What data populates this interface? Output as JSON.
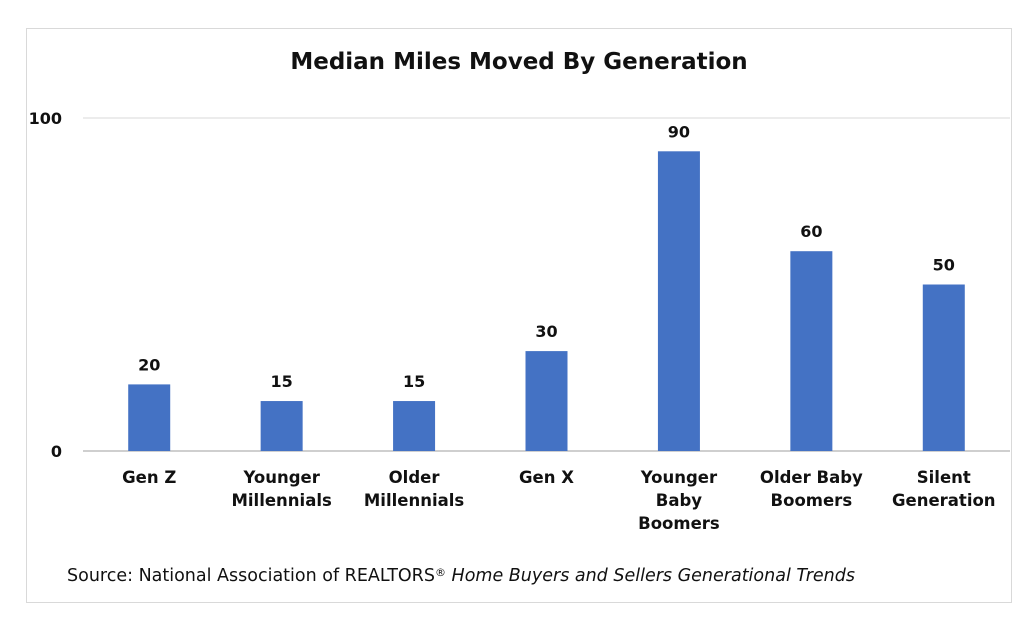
{
  "chart_data": {
    "type": "bar",
    "title": "Median Miles Moved By Generation",
    "categories": [
      [
        "Gen Z"
      ],
      [
        "Younger",
        "Millennials"
      ],
      [
        "Older",
        "Millennials"
      ],
      [
        "Gen X"
      ],
      [
        "Younger",
        "Baby",
        "Boomers"
      ],
      [
        "Older Baby",
        "Boomers"
      ],
      [
        "Silent",
        "Generation"
      ]
    ],
    "values": [
      20,
      15,
      15,
      30,
      90,
      60,
      50
    ],
    "data_labels": [
      "20",
      "15",
      "15",
      "30",
      "90",
      "60",
      "50"
    ],
    "ylim": [
      0,
      100
    ],
    "y_ticks": [
      "0",
      "100"
    ],
    "xlabel": "",
    "ylabel": "",
    "grid": true,
    "legend": "none",
    "bar_color": "#4472c4"
  },
  "source": {
    "prefix": "Source: National Association of REALTORS",
    "registered": "®",
    "italic": "Home Buyers and Sellers Generational Trends"
  }
}
